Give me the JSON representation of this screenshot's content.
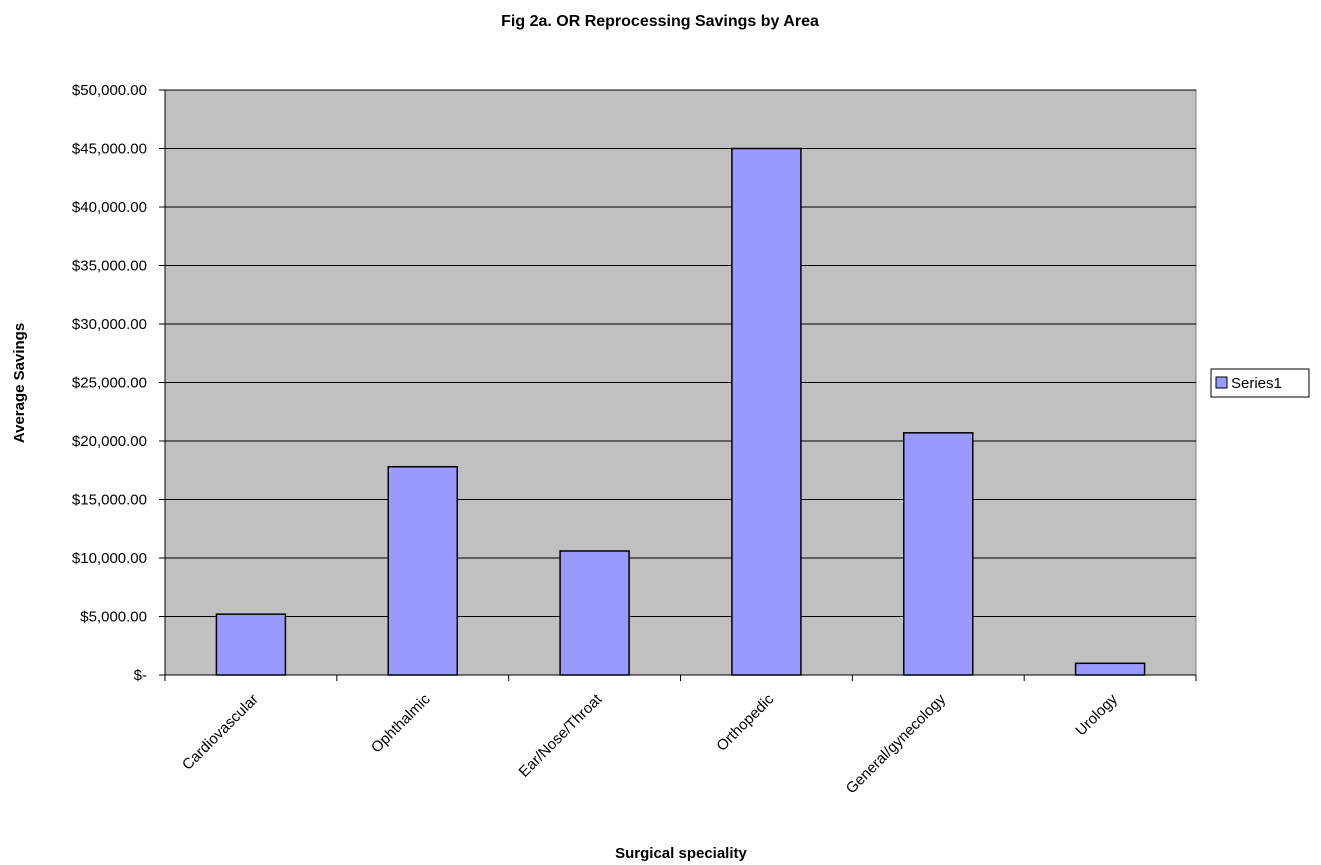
{
  "chart_data": {
    "type": "bar",
    "title": "Fig 2a. OR Reprocessing Savings by Area",
    "xlabel": "Surgical speciality",
    "ylabel": "Average Savings",
    "categories": [
      "Cardiovascular",
      "Ophthalmic",
      "Ear/Nose/Throat",
      "Orthopedic",
      "General/gynecology",
      "Urology"
    ],
    "series": [
      {
        "name": "Series1",
        "values": [
          5200,
          17800,
          10600,
          45000,
          20700,
          1000
        ]
      }
    ],
    "ylim": [
      0,
      50000
    ],
    "y_ticks": [
      0,
      5000,
      10000,
      15000,
      20000,
      25000,
      30000,
      35000,
      40000,
      45000,
      50000
    ],
    "y_tick_labels": [
      "$-",
      "$5,000.00",
      "$10,000.00",
      "$15,000.00",
      "$20,000.00",
      "$25,000.00",
      "$30,000.00",
      "$35,000.00",
      "$40,000.00",
      "$45,000.00",
      "$50,000.00"
    ],
    "grid": true,
    "legend_position": "right",
    "colors": {
      "plot_background": "#c0c0c0",
      "bar_fill": "#9999ff",
      "bar_stroke": "#000000",
      "gridline": "#000000"
    }
  }
}
